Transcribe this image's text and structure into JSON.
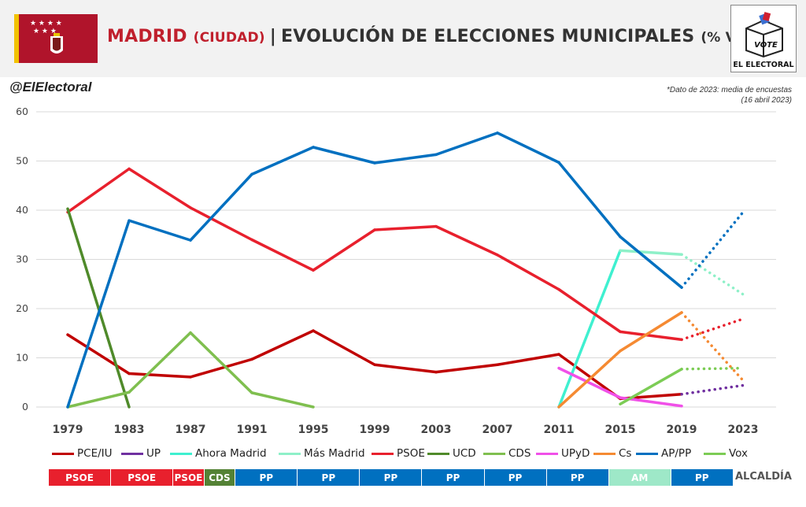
{
  "header": {
    "city": "MADRID",
    "city_sub": "(CIUDAD)",
    "separator": "|",
    "title": "EVOLUCIÓN DE ELECCIONES MUNICIPALES",
    "title_sub": "(% VOTO)",
    "logo_box_text": "VOTE",
    "logo_text": "EL ELECTORAL"
  },
  "handle": "@ElElectoral",
  "note_line1": "*Dato de 2023: media de encuestas",
  "note_line2": "(16 abril 2023)",
  "colors": {
    "PCE/IU": "#c00000",
    "UP": "#7030a0",
    "Ahora Madrid": "#3ff0d0",
    "Más Madrid": "#8ef0c8",
    "PSOE": "#e8202d",
    "UCD": "#4f8a2a",
    "CDS": "#7fbf4f",
    "UPyD": "#f050e8",
    "Cs": "#f58a32",
    "AP/PP": "#0070c0",
    "Vox": "#7ccc55"
  },
  "chart_data": {
    "type": "line",
    "x": [
      "1979",
      "1983",
      "1987",
      "1991",
      "1995",
      "1999",
      "2003",
      "2007",
      "2011",
      "2015",
      "2019",
      "2023"
    ],
    "ylim": [
      0,
      60
    ],
    "yticks": [
      "0",
      "10",
      "20",
      "30",
      "40",
      "50",
      "60"
    ],
    "grid": true,
    "legend_position": "bottom",
    "dotted_segment": "2019-2023",
    "series": [
      {
        "name": "PCE/IU",
        "values": [
          14.7,
          6.8,
          6.1,
          9.7,
          15.5,
          8.6,
          7.1,
          8.6,
          10.7,
          1.7,
          2.6,
          null
        ]
      },
      {
        "name": "UP",
        "values": [
          null,
          null,
          null,
          null,
          null,
          null,
          null,
          null,
          null,
          null,
          2.6,
          4.4
        ]
      },
      {
        "name": "Ahora Madrid",
        "values": [
          null,
          null,
          null,
          null,
          null,
          null,
          null,
          null,
          0,
          31.8,
          null,
          null
        ]
      },
      {
        "name": "Más Madrid",
        "values": [
          null,
          null,
          null,
          null,
          null,
          null,
          null,
          null,
          null,
          31.8,
          31.0,
          22.9
        ]
      },
      {
        "name": "PSOE",
        "values": [
          39.6,
          48.4,
          40.5,
          34.0,
          27.8,
          36.0,
          36.7,
          30.9,
          23.9,
          15.3,
          13.7,
          17.9
        ]
      },
      {
        "name": "UCD",
        "values": [
          40.3,
          0,
          null,
          null,
          null,
          null,
          null,
          null,
          null,
          null,
          null,
          null
        ]
      },
      {
        "name": "CDS",
        "values": [
          0,
          3.0,
          15.1,
          2.9,
          0,
          null,
          null,
          null,
          null,
          null,
          null,
          null
        ]
      },
      {
        "name": "UPyD",
        "values": [
          null,
          null,
          null,
          null,
          null,
          null,
          null,
          null,
          7.9,
          1.9,
          0.2,
          null
        ]
      },
      {
        "name": "Cs",
        "values": [
          null,
          null,
          null,
          null,
          null,
          null,
          null,
          null,
          0,
          11.4,
          19.2,
          5.4
        ]
      },
      {
        "name": "AP/PP",
        "values": [
          0,
          37.9,
          33.9,
          47.3,
          52.8,
          49.6,
          51.3,
          55.7,
          49.7,
          34.6,
          24.3,
          39.6
        ]
      },
      {
        "name": "Vox",
        "values": [
          null,
          null,
          null,
          null,
          null,
          null,
          null,
          null,
          null,
          0.6,
          7.7,
          7.9
        ]
      }
    ]
  },
  "alcaldia": {
    "label": "ALCALDÍA",
    "segments": [
      {
        "party": "PSOE",
        "color": "#e8202d",
        "span": 1
      },
      {
        "party": "PSOE",
        "color": "#e8202d",
        "span": 1
      },
      {
        "party": "PSOE",
        "color": "#e8202d",
        "span": 0.5
      },
      {
        "party": "CDS",
        "color": "#548235",
        "span": 0.5
      },
      {
        "party": "PP",
        "color": "#0070c0",
        "span": 1
      },
      {
        "party": "PP",
        "color": "#0070c0",
        "span": 1
      },
      {
        "party": "PP",
        "color": "#0070c0",
        "span": 1
      },
      {
        "party": "PP",
        "color": "#0070c0",
        "span": 1
      },
      {
        "party": "PP",
        "color": "#0070c0",
        "span": 1
      },
      {
        "party": "PP",
        "color": "#0070c0",
        "span": 1
      },
      {
        "party": "AM",
        "color": "#9ee8c8",
        "span": 1
      },
      {
        "party": "PP",
        "color": "#0070c0",
        "span": 1
      }
    ]
  }
}
